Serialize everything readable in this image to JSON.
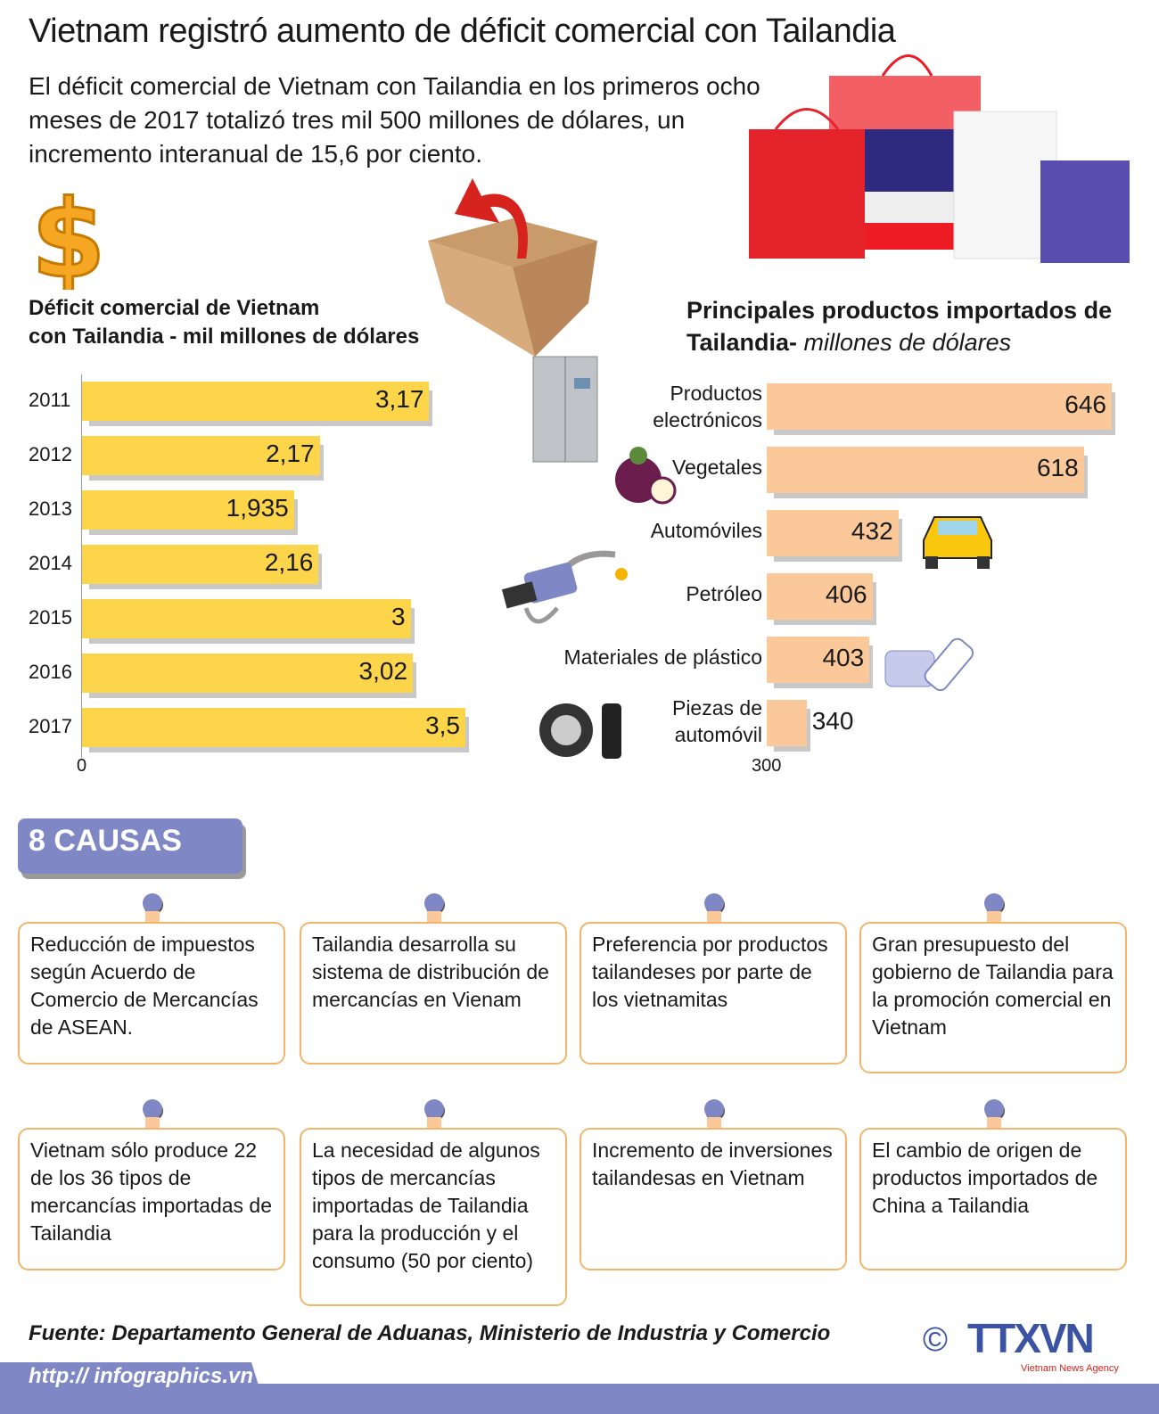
{
  "title": "Vietnam registró aumento de déficit comercial con Tailandia",
  "intro": "El déficit comercial de Vietnam con Tailandia en los primeros ocho meses de 2017 totalizó tres mil 500 millones de dólares, un incremento interanual de 15,6 por ciento.",
  "colors": {
    "yellow_bar": "#FDD54A",
    "peach_bar": "#FBC89A",
    "accent_purple": "#7F88C4",
    "card_border": "#F2B56B"
  },
  "chart_data": [
    {
      "type": "bar",
      "orientation": "horizontal",
      "title_line1": "Déficit comercial de Vietnam",
      "title_line2": "con Tailandia - mil millones de dólares",
      "categories": [
        "2011",
        "2012",
        "2013",
        "2014",
        "2015",
        "2016",
        "2017"
      ],
      "values": [
        3.17,
        2.17,
        1.935,
        2.16,
        3,
        3.02,
        3.5
      ],
      "labels": [
        "3,17",
        "2,17",
        "1,935",
        "2,16",
        "3",
        "3,02",
        "3,5"
      ],
      "xlim": [
        0,
        3.5
      ],
      "x_tick": "0"
    },
    {
      "type": "bar",
      "orientation": "horizontal",
      "title_bold": "Principales productos importados de Tailandia-",
      "title_italic": " millones de dólares",
      "categories": [
        "Productos electrónicos",
        "Vegetales",
        "Automóviles",
        "Petróleo",
        "Materiales de plástico",
        "Piezas de automóvil"
      ],
      "values": [
        646,
        618,
        432,
        406,
        403,
        340
      ],
      "labels": [
        "646",
        "618",
        "432",
        "406",
        "403",
        "340"
      ],
      "xlim": [
        300,
        646
      ],
      "x_tick": "300"
    }
  ],
  "causes_title": "8 CAUSAS",
  "causes": [
    "Reducción de impuestos según Acuerdo de Comercio de Mercancías de ASEAN.",
    "Tailandia desarrolla su sistema de distribución de mercancías en Vienam",
    "Preferencia por productos tailandeses por parte de los vietnamitas",
    "Gran presupuesto del gobierno de Tailandia para la promoción comercial en Vietnam",
    "Vietnam sólo produce 22 de los 36 tipos de mercancías importadas de Tailandia",
    "La necesidad de algunos tipos de mercancías importadas de Tailandia para la producción y el consumo (50 por ciento)",
    "Incremento de inversiones tailandesas en Vietnam",
    "El cambio de origen de productos importados de China a Tailandia"
  ],
  "source": "Fuente: Departamento General de Aduanas, Ministerio de Industria y Comercio",
  "url": "http:// infographics.vn",
  "logo": {
    "text": "TTXVN",
    "sub": "Vietnam News Agency",
    "copyright": "©"
  },
  "icons": [
    "dollar-icon",
    "open-box-icon",
    "shopping-bags-icon",
    "refrigerator-icon",
    "mangosteen-icon",
    "car-icon",
    "fuel-nozzle-icon",
    "plastic-bottle-icon",
    "tire-icon"
  ]
}
